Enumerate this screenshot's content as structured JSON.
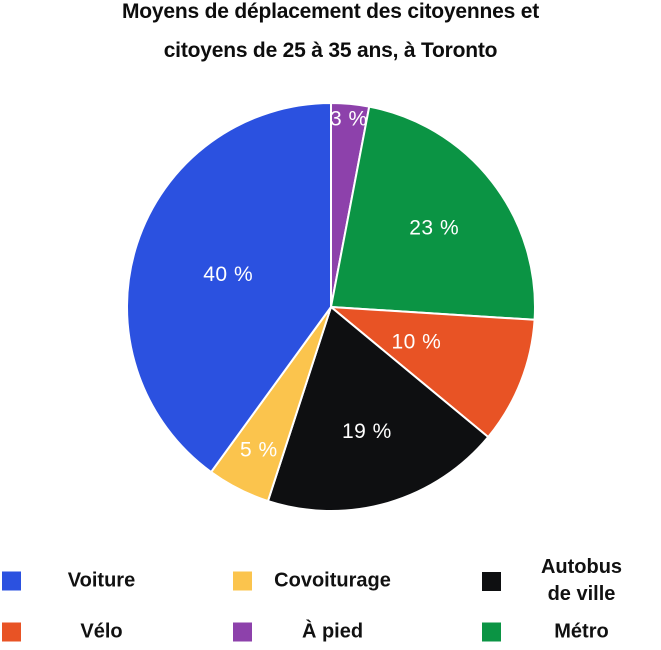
{
  "title_lines": [
    "Moyens de déplacement des citoyennes et",
    "citoyens de 25 à 35 ans, à Toronto"
  ],
  "chart_data": {
    "type": "pie",
    "title": "Moyens de déplacement des citoyennes et citoyens de 25 à 35 ans, à Toronto",
    "value_suffix": " %",
    "order": "clockwise-from-top",
    "start_angle_deg": 0,
    "legend_position": "bottom",
    "slices": [
      {
        "label": "À pied",
        "value": 3,
        "color": "#8d41ab",
        "data_label": "3 %"
      },
      {
        "label": "Métro",
        "value": 23,
        "color": "#0b9444",
        "data_label": "23 %"
      },
      {
        "label": "Vélo",
        "value": 10,
        "color": "#e85325",
        "data_label": "10 %"
      },
      {
        "label": "Autobus de ville",
        "value": 19,
        "color": "#0e0f11",
        "data_label": "19 %"
      },
      {
        "label": "Covoiturage",
        "value": 5,
        "color": "#fbc44d",
        "data_label": "5 %"
      },
      {
        "label": "Voiture",
        "value": 40,
        "color": "#2b51e0",
        "data_label": "40 %"
      }
    ]
  },
  "legend": {
    "items": [
      {
        "label": "Voiture",
        "color": "#2b51e0"
      },
      {
        "label": "Covoiturage",
        "color": "#fbc44d"
      },
      {
        "label": "Autobus\nde ville",
        "color": "#0e0f11"
      },
      {
        "label": "Vélo",
        "color": "#e85325"
      },
      {
        "label": "À pied",
        "color": "#8d41ab"
      },
      {
        "label": "Métro",
        "color": "#0b9444"
      }
    ]
  }
}
